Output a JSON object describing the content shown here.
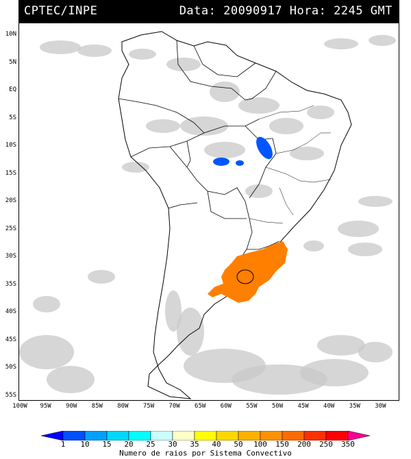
{
  "header": {
    "org": "CPTEC/INPE",
    "stamp": "Data: 20090917 Hora: 2245 GMT"
  },
  "map": {
    "lat_labels": [
      "10N",
      "5N",
      "EQ",
      "5S",
      "10S",
      "15S",
      "20S",
      "25S",
      "30S",
      "35S",
      "40S",
      "45S",
      "50S",
      "55S"
    ],
    "lon_labels": [
      "100W",
      "95W",
      "90W",
      "85W",
      "80W",
      "75W",
      "70W",
      "65W",
      "60W",
      "55W",
      "50W",
      "45W",
      "40W",
      "35W",
      "30W"
    ],
    "colors": {
      "cloud": "#c8c8c8",
      "coast": "#000000",
      "high_activity": "#ff7f00",
      "low_activity": "#0055ff"
    }
  },
  "legend": {
    "labels": [
      "1",
      "10",
      "15",
      "20",
      "25",
      "30",
      "35",
      "40",
      "50",
      "100",
      "150",
      "200",
      "250",
      "350"
    ],
    "colors": [
      "#0000ff",
      "#0050ff",
      "#00a0ff",
      "#00d8ff",
      "#00ffff",
      "#c8ffff",
      "#ffffc8",
      "#ffff00",
      "#ffd700",
      "#ffb000",
      "#ff9000",
      "#ff6a00",
      "#ff3000",
      "#ff0000",
      "#ff0090"
    ],
    "title": "Numero de raios por Sistema Convectivo"
  }
}
